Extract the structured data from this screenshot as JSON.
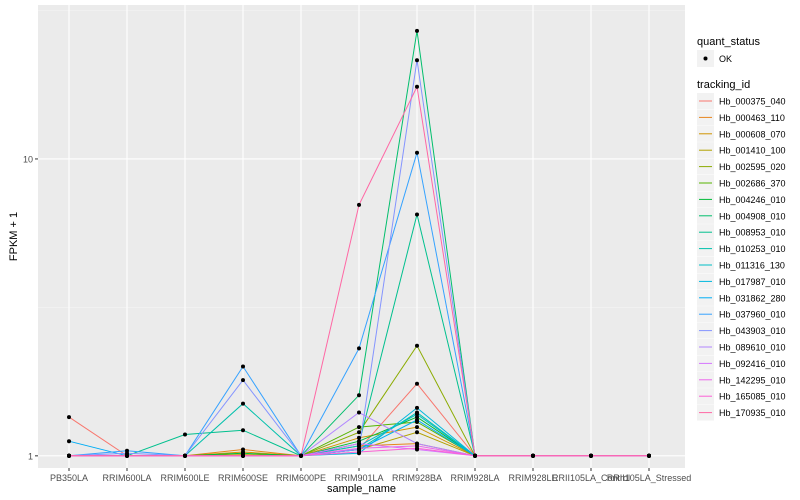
{
  "chart_data": {
    "type": "line",
    "title": "",
    "xlabel": "sample_name",
    "ylabel": "FPKM + 1",
    "yscale": "log10",
    "ylim": [
      0.91,
      33
    ],
    "yticks": [
      1,
      10
    ],
    "ytick_labels": [
      "1",
      "10"
    ],
    "categories": [
      "PB350LA",
      "RRIM600LA",
      "RRIM600LE",
      "RRIM600SE",
      "RRIM600PE",
      "RRIM901LA",
      "RRIM928BA",
      "RRIM928LA",
      "RRIM928LE",
      "RRII105LA_Control",
      "RRII105LA_Stressed"
    ],
    "grid": true,
    "legend_position": "right",
    "legend": {
      "shape_title": "quant_status",
      "shape_items": [
        "OK"
      ],
      "color_title": "tracking_id"
    },
    "series": [
      {
        "name": "Hb_000375_040",
        "color": "#F8766D",
        "values": [
          1.35,
          1.0,
          1.0,
          1.0,
          1.0,
          1.05,
          1.75,
          1.0,
          1.0,
          1.0,
          1.0
        ]
      },
      {
        "name": "Hb_000463_110",
        "color": "#E7851E",
        "values": [
          1.0,
          1.0,
          1.0,
          1.05,
          1.0,
          1.08,
          1.1,
          1.0,
          1.0,
          1.0,
          1.0
        ]
      },
      {
        "name": "Hb_000608_070",
        "color": "#D09400",
        "values": [
          1.0,
          1.0,
          1.0,
          1.03,
          1.0,
          1.15,
          1.25,
          1.0,
          1.0,
          1.0,
          1.0
        ]
      },
      {
        "name": "Hb_001410_100",
        "color": "#B2A100",
        "values": [
          1.0,
          1.0,
          1.0,
          1.01,
          1.0,
          1.05,
          1.2,
          1.0,
          1.0,
          1.0,
          1.0
        ]
      },
      {
        "name": "Hb_002595_020",
        "color": "#8BAB00",
        "values": [
          1.0,
          1.0,
          1.0,
          1.0,
          1.0,
          1.2,
          2.35,
          1.0,
          1.0,
          1.0,
          1.0
        ]
      },
      {
        "name": "Hb_002686_370",
        "color": "#55B400",
        "values": [
          1.0,
          1.0,
          1.0,
          1.0,
          1.0,
          1.25,
          1.3,
          1.0,
          1.0,
          1.0,
          1.0
        ]
      },
      {
        "name": "Hb_004246_010",
        "color": "#00BA38",
        "values": [
          1.0,
          1.0,
          1.0,
          1.02,
          1.0,
          1.12,
          1.35,
          1.0,
          1.0,
          1.0,
          1.0
        ]
      },
      {
        "name": "Hb_004908_010",
        "color": "#00BE6C",
        "values": [
          1.0,
          1.0,
          1.0,
          1.0,
          1.0,
          1.6,
          27.0,
          1.0,
          1.0,
          1.0,
          1.0
        ]
      },
      {
        "name": "Hb_008953_010",
        "color": "#00C08E",
        "values": [
          1.0,
          1.0,
          1.18,
          1.22,
          1.0,
          1.1,
          6.5,
          1.0,
          1.0,
          1.0,
          1.0
        ]
      },
      {
        "name": "Hb_010253_010",
        "color": "#00C0AC",
        "values": [
          1.0,
          1.0,
          1.0,
          1.5,
          1.0,
          1.05,
          1.4,
          1.0,
          1.0,
          1.0,
          1.0
        ]
      },
      {
        "name": "Hb_011316_130",
        "color": "#00BEC6",
        "values": [
          1.0,
          1.0,
          1.0,
          1.0,
          1.0,
          1.08,
          1.38,
          1.0,
          1.0,
          1.0,
          1.0
        ]
      },
      {
        "name": "Hb_017987_010",
        "color": "#00B8DE",
        "values": [
          1.0,
          1.0,
          1.0,
          1.0,
          1.0,
          1.02,
          1.45,
          1.0,
          1.0,
          1.0,
          1.0
        ]
      },
      {
        "name": "Hb_031862_280",
        "color": "#00ADF5",
        "values": [
          1.12,
          1.0,
          1.0,
          1.0,
          1.0,
          1.05,
          1.32,
          1.0,
          1.0,
          1.0,
          1.0
        ]
      },
      {
        "name": "Hb_037960_010",
        "color": "#35A2FF",
        "values": [
          1.0,
          1.04,
          1.0,
          2.0,
          1.0,
          2.3,
          10.5,
          1.0,
          1.0,
          1.0,
          1.0
        ]
      },
      {
        "name": "Hb_043903_010",
        "color": "#8494FF",
        "values": [
          1.0,
          1.02,
          1.0,
          1.8,
          1.0,
          1.05,
          21.5,
          1.0,
          1.0,
          1.0,
          1.0
        ]
      },
      {
        "name": "Hb_089610_010",
        "color": "#B186FF",
        "values": [
          1.0,
          1.0,
          1.0,
          1.0,
          1.0,
          1.4,
          1.1,
          1.0,
          1.0,
          1.0,
          1.0
        ]
      },
      {
        "name": "Hb_092416_010",
        "color": "#D575FE",
        "values": [
          1.0,
          1.0,
          1.0,
          1.0,
          1.0,
          1.1,
          1.05,
          1.0,
          1.0,
          1.0,
          1.0
        ]
      },
      {
        "name": "Hb_142295_010",
        "color": "#ED68ED",
        "values": [
          1.0,
          1.0,
          1.0,
          1.0,
          1.0,
          1.06,
          1.08,
          1.0,
          1.0,
          1.0,
          1.0
        ]
      },
      {
        "name": "Hb_165085_010",
        "color": "#FC61D5",
        "values": [
          1.0,
          1.0,
          1.0,
          1.0,
          1.0,
          1.03,
          1.06,
          1.0,
          1.0,
          1.0,
          1.0
        ]
      },
      {
        "name": "Hb_170935_010",
        "color": "#FF67A4",
        "values": [
          1.0,
          1.0,
          1.0,
          1.0,
          1.0,
          7.0,
          17.5,
          1.0,
          1.0,
          1.0,
          1.0
        ]
      }
    ]
  }
}
